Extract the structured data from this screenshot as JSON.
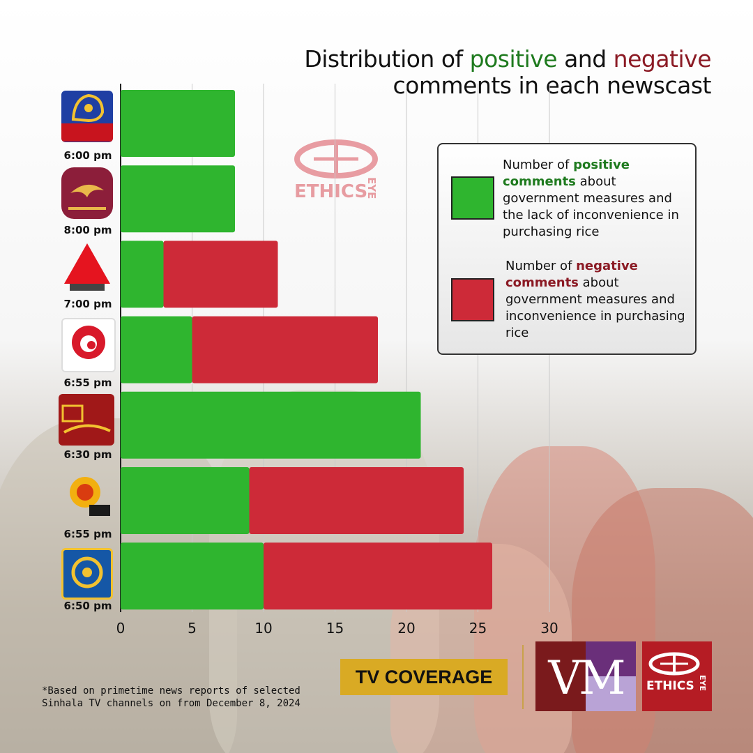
{
  "title": {
    "part1": "Distribution of ",
    "positive": "positive",
    "part2": " and ",
    "negative": "negative",
    "line2": "comments in each newscast"
  },
  "colors": {
    "positive": "#2fb52f",
    "negative": "#cd2a38",
    "positive_text": "#1e7a1e",
    "negative_text": "#8b1a24",
    "coverage_bg": "#d9aa24"
  },
  "chart_data": {
    "type": "bar",
    "orientation": "horizontal",
    "stacked": true,
    "categories": [
      "6:00 pm",
      "8:00 pm",
      "7:00 pm",
      "6:55 pm",
      "6:30 pm",
      "6:55 pm",
      "6:50 pm"
    ],
    "channel_logos": [
      "Siyatha TV",
      "Rupavahini",
      "Sirasa TV",
      "Derana",
      "ITN Sri Lanka",
      "Hiru TV",
      "Swarnavahini"
    ],
    "series": [
      {
        "name": "Number of positive comments",
        "color": "#2fb52f",
        "values": [
          8,
          8,
          3,
          5,
          21,
          9,
          10
        ]
      },
      {
        "name": "Number of negative comments",
        "color": "#cd2a38",
        "values": [
          0,
          0,
          8,
          13,
          0,
          15,
          16
        ]
      }
    ],
    "xlim": [
      0,
      30
    ],
    "xticks": [
      0,
      5,
      10,
      15,
      20,
      25,
      30
    ],
    "grid": true
  },
  "legend": {
    "positive": {
      "prefix": "Number of ",
      "highlight": "positive comments",
      "rest": " about government measures and the lack of inconvenience in purchasing rice"
    },
    "negative": {
      "prefix": "Number of ",
      "highlight": "negative comments",
      "rest": " about government measures and inconvenience in purchasing rice"
    }
  },
  "watermark": {
    "brand": "ETHICS",
    "brand_vertical": "EYE"
  },
  "footnote": {
    "line1": "*Based on primetime news reports of selected",
    "line2": "Sinhala TV channels on from December 8, 2024"
  },
  "coverage_label": "TV COVERAGE",
  "footer_logos": {
    "vm": "VM",
    "eye_brand": "ETHICS",
    "eye_vertical": "EYE"
  }
}
